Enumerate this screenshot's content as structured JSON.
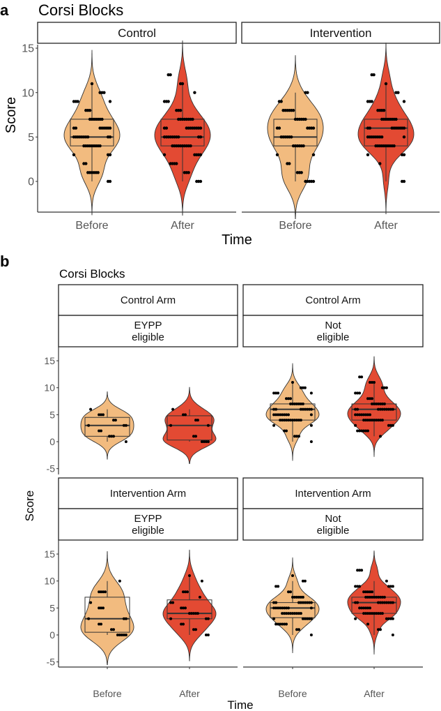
{
  "colors": {
    "before": "#F2BB7F",
    "after": "#E34A33",
    "points": "#000000",
    "box": "#333333"
  },
  "chart_data": [
    {
      "type": "violin",
      "panel_label": "a",
      "title": "Corsi Blocks",
      "xlabel": "Time",
      "ylabel": "Score",
      "ylim": [
        -2.5,
        15.5
      ],
      "yticks": [
        "0",
        "5",
        "10",
        "15"
      ],
      "categories": [
        "Before",
        "After"
      ],
      "facets": [
        {
          "strip": [
            "Control"
          ],
          "groups": [
            {
              "name": "Before",
              "box": {
                "q1": 4,
                "median": 5,
                "q3": 7,
                "lo": 0,
                "hi": 11
              },
              "counts": {
                "0": 2,
                "1": 6,
                "2": 2,
                "3": 3,
                "4": 9,
                "5": 10,
                "6": 8,
                "7": 7,
                "8": 3,
                "9": 4,
                "10": 3,
                "11": 1
              }
            },
            {
              "name": "After",
              "box": {
                "q1": 4,
                "median": 5,
                "q3": 7,
                "lo": 0,
                "hi": 11
              },
              "counts": {
                "0": 3,
                "1": 3,
                "2": 4,
                "3": 5,
                "4": 10,
                "5": 10,
                "6": 10,
                "7": 8,
                "8": 3,
                "9": 3,
                "10": 1,
                "11": 2,
                "12": 2
              }
            }
          ]
        },
        {
          "strip": [
            "Intervention"
          ],
          "groups": [
            {
              "name": "Before",
              "box": {
                "q1": 4,
                "median": 5,
                "q3": 7,
                "lo": 0,
                "hi": 10
              },
              "counts": {
                "0": 5,
                "1": 3,
                "2": 2,
                "3": 2,
                "4": 6,
                "5": 6,
                "6": 6,
                "7": 6,
                "8": 6,
                "9": 2,
                "10": 2
              }
            },
            {
              "name": "After",
              "box": {
                "q1": 4,
                "median": 6,
                "q3": 7,
                "lo": 0,
                "hi": 11
              },
              "counts": {
                "0": 2,
                "2": 1,
                "3": 3,
                "4": 10,
                "5": 9,
                "6": 9,
                "7": 8,
                "8": 4,
                "9": 4,
                "10": 2,
                "11": 1,
                "12": 2
              }
            }
          ]
        }
      ]
    },
    {
      "type": "violin",
      "panel_label": "b",
      "title": "Corsi Blocks",
      "xlabel": "Time",
      "ylabel": "Score",
      "ylim": [
        -5.5,
        16
      ],
      "yticks": [
        "-5",
        "0",
        "5",
        "10",
        "15"
      ],
      "categories": [
        "Before",
        "After"
      ],
      "facets": [
        {
          "strip": [
            "Control Arm",
            "EYPP",
            "eligible"
          ],
          "groups": [
            {
              "name": "Before",
              "box": {
                "q1": 1,
                "median": 3,
                "q3": 4.5,
                "lo": 0,
                "hi": 6
              },
              "counts": {
                "0": 1,
                "1": 3,
                "2": 2,
                "3": 3,
                "4": 2,
                "5": 3,
                "6": 1
              }
            },
            {
              "name": "After",
              "box": {
                "q1": 0.3,
                "median": 3,
                "q3": 4.8,
                "lo": 0,
                "hi": 6
              },
              "counts": {
                "0": 4,
                "1": 2,
                "3": 2,
                "4": 2,
                "5": 2,
                "6": 1
              }
            }
          ]
        },
        {
          "strip": [
            "Control Arm",
            "Not",
            "eligible"
          ],
          "groups": [
            {
              "name": "Before",
              "box": {
                "q1": 4,
                "median": 6,
                "q3": 7,
                "lo": 0,
                "hi": 11
              },
              "counts": {
                "0": 1,
                "1": 3,
                "2": 2,
                "3": 2,
                "4": 11,
                "5": 9,
                "6": 8,
                "7": 7,
                "8": 3,
                "9": 4,
                "10": 3,
                "11": 1
              }
            },
            {
              "name": "After",
              "box": {
                "q1": 4,
                "median": 6,
                "q3": 7,
                "lo": 1,
                "hi": 11
              },
              "counts": {
                "1": 1,
                "2": 6,
                "3": 4,
                "4": 10,
                "5": 8,
                "6": 10,
                "7": 7,
                "8": 3,
                "9": 3,
                "10": 3,
                "11": 3,
                "12": 2
              }
            }
          ]
        },
        {
          "strip": [
            "Intervention Arm",
            "EYPP",
            "eligible"
          ],
          "groups": [
            {
              "name": "Before",
              "box": {
                "q1": 0.5,
                "median": 3,
                "q3": 7,
                "lo": 0,
                "hi": 10
              },
              "counts": {
                "0": 5,
                "1": 2,
                "2": 2,
                "3": 3,
                "5": 3,
                "6": 1,
                "8": 4,
                "10": 1
              }
            },
            {
              "name": "After",
              "box": {
                "q1": 3,
                "median": 4,
                "q3": 6.5,
                "lo": 0,
                "hi": 11
              },
              "counts": {
                "0": 2,
                "1": 2,
                "2": 2,
                "3": 3,
                "4": 5,
                "5": 3,
                "6": 2,
                "7": 1,
                "8": 3,
                "10": 1,
                "11": 1
              }
            }
          ]
        },
        {
          "strip": [
            "Intervention Arm",
            "Not",
            "eligible"
          ],
          "groups": [
            {
              "name": "Before",
              "box": {
                "q1": 3.2,
                "median": 5,
                "q3": 6,
                "lo": 0,
                "hi": 10
              },
              "counts": {
                "0": 1,
                "1": 2,
                "2": 6,
                "3": 6,
                "4": 10,
                "5": 9,
                "6": 9,
                "7": 6,
                "8": 2,
                "9": 2,
                "10": 2,
                "11": 1
              }
            },
            {
              "name": "After",
              "box": {
                "q1": 4,
                "median": 6,
                "q3": 7,
                "lo": 0,
                "hi": 10
              },
              "counts": {
                "0": 1,
                "1": 2,
                "2": 1,
                "3": 5,
                "4": 10,
                "5": 6,
                "6": 10,
                "7": 10,
                "8": 5,
                "9": 6,
                "10": 1,
                "12": 3
              }
            }
          ]
        }
      ]
    }
  ]
}
